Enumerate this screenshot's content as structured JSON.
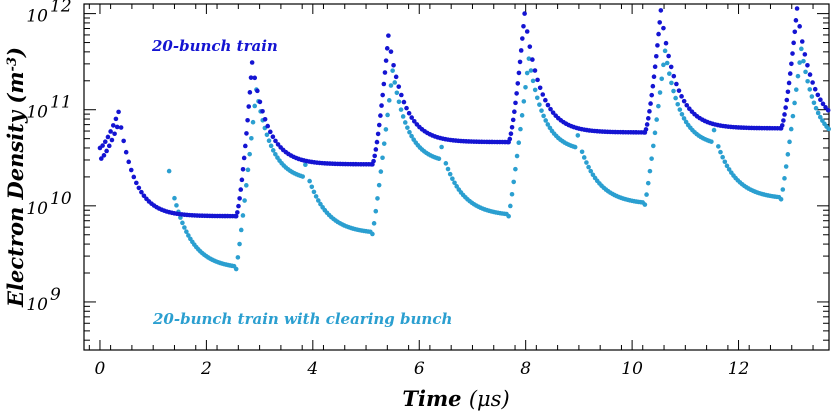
{
  "chart_data": {
    "type": "scatter",
    "title": "",
    "xlabel": "Time (μs)",
    "ylabel": "Electron Density (m⁻³)",
    "xlabel_main": "Time",
    "xlabel_unit": "(μs)",
    "ylabel_main": "Electron Density",
    "ylabel_unit_base": "(m",
    "ylabel_unit_exp": "-3",
    "ylabel_unit_close": ")",
    "xlim": [
      -0.3,
      13.7
    ],
    "ylim_exponent": [
      8.5,
      12.1
    ],
    "y_scale": "log",
    "grid": false,
    "x_ticks": [
      0,
      2,
      4,
      6,
      8,
      10,
      12
    ],
    "x_tick_labels": [
      "0",
      "2",
      "4",
      "6",
      "8",
      "10",
      "12"
    ],
    "y_ticks_exponent": [
      9,
      10,
      11,
      12
    ],
    "y_tick_labels": [
      {
        "base": "10",
        "exp": "9"
      },
      {
        "base": "10",
        "exp": "10"
      },
      {
        "base": "10",
        "exp": "11"
      },
      {
        "base": "10",
        "exp": "12"
      }
    ],
    "period_us": 2.56,
    "train_length_us": 2.56,
    "series": [
      {
        "name": "20-bunch train",
        "color": "#1414d2",
        "label_position": "upper-left",
        "cycle_peak_density": [
          95000000000.0,
          310000000000.0,
          590000000000.0,
          1000000000000.0,
          1080000000000.0,
          1130000000000.0
        ],
        "cycle_floor_density": [
          7800000000.0,
          27000000000.0,
          46000000000.0,
          58000000000.0,
          64000000000.0,
          66000000000.0
        ]
      },
      {
        "name": "20-bunch train with clearing bunch",
        "color": "#2b9fd0",
        "label_position": "lower-left",
        "cycle_peak_density": [
          null,
          162000000000.0,
          255000000000.0,
          340000000000.0,
          410000000000.0,
          430000000000.0
        ],
        "cycle_floor_density": [
          2200000000.0,
          5100000000.0,
          7800000000.0,
          10300000000.0,
          11700000000.0,
          12000000000.0
        ]
      }
    ]
  }
}
